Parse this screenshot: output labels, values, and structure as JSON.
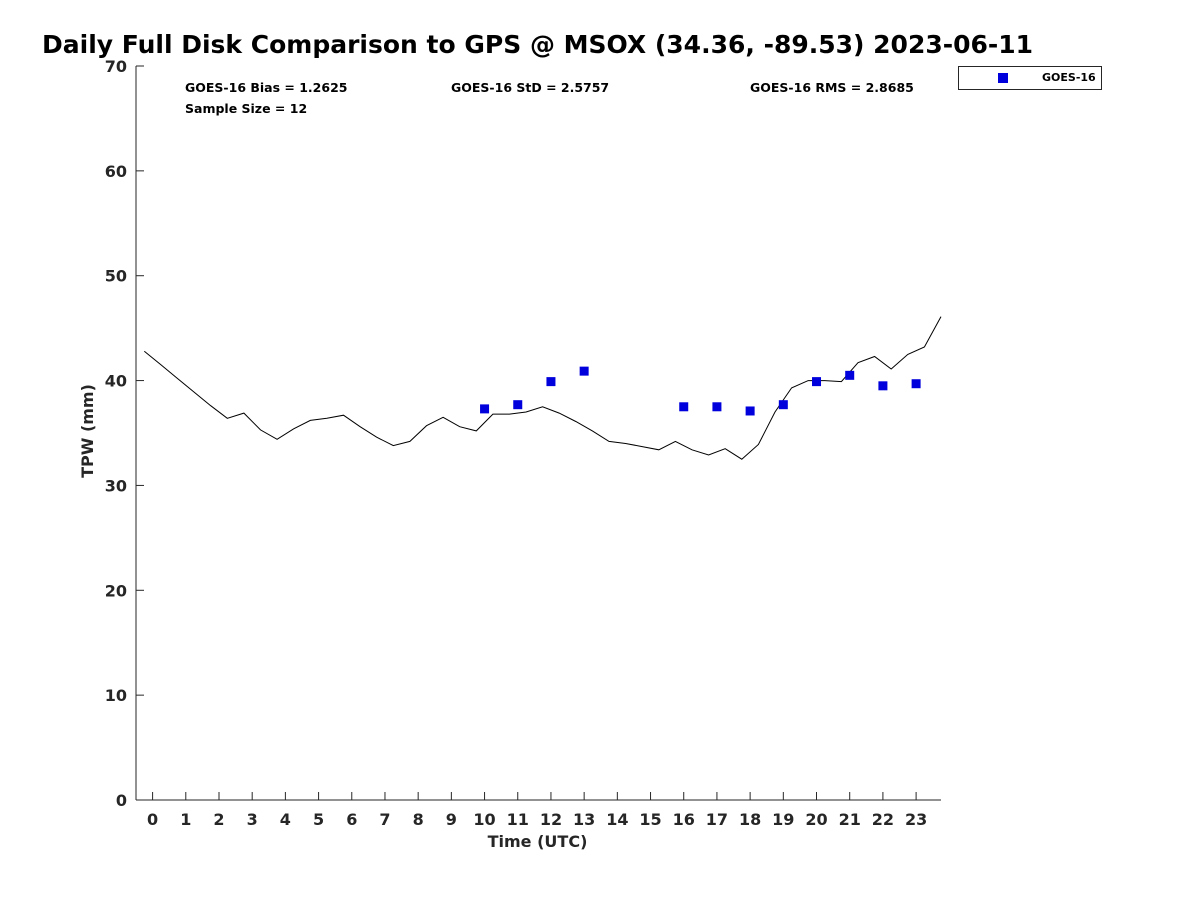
{
  "title": "Daily Full Disk Comparison to GPS @ MSOX (34.36, -89.53) 2023-06-11",
  "stats": {
    "bias": "GOES-16 Bias = 1.2625",
    "std": "GOES-16 StD = 2.5757",
    "rms": "GOES-16 RMS = 2.8685",
    "sample": "Sample Size = 12"
  },
  "colors": {
    "goes": "#0000dd",
    "gps_line": "#000000",
    "axis": "#262626"
  },
  "chart_data": {
    "type": "scatter",
    "title": "Daily Full Disk Comparison to GPS @ MSOX (34.36, -89.53) 2023-06-11",
    "xlabel": "Time (UTC)",
    "ylabel": "TPW (mm)",
    "xlim": [
      -0.5,
      23.75
    ],
    "ylim": [
      0,
      70
    ],
    "xticks": [
      0,
      1,
      2,
      3,
      4,
      5,
      6,
      7,
      8,
      9,
      10,
      11,
      12,
      13,
      14,
      15,
      16,
      17,
      18,
      19,
      20,
      21,
      22,
      23
    ],
    "yticks": [
      0,
      10,
      20,
      30,
      40,
      50,
      60,
      70
    ],
    "grid": false,
    "legend": {
      "placement": "top-right outside",
      "entries": [
        "GOES-16"
      ]
    },
    "series": [
      {
        "name": "GOES-16",
        "marker": "square",
        "x": [
          10,
          11,
          12,
          13,
          16,
          17,
          18,
          19,
          20,
          21,
          22,
          23
        ],
        "y": [
          37.3,
          37.7,
          39.9,
          40.9,
          37.5,
          37.5,
          37.1,
          37.7,
          39.9,
          40.5,
          39.5,
          39.7
        ]
      },
      {
        "marker": "line",
        "x": [
          -0.25,
          0.25,
          0.75,
          1.25,
          1.75,
          2.25,
          2.75,
          3.25,
          3.75,
          4.25,
          4.75,
          5.25,
          5.75,
          6.25,
          6.75,
          7.25,
          7.75,
          8.25,
          8.75,
          9.25,
          9.75,
          10.25,
          10.75,
          11.25,
          11.75,
          12.25,
          12.75,
          13.25,
          13.75,
          14.25,
          14.75,
          15.25,
          15.75,
          16.25,
          16.75,
          17.25,
          17.75,
          18.25,
          18.75,
          19.25,
          19.75,
          20.25,
          20.75,
          21.25,
          21.75,
          22.25,
          22.75,
          23.25,
          23.75
        ],
        "y": [
          42.8,
          41.5,
          40.2,
          38.9,
          37.6,
          36.4,
          36.9,
          35.3,
          34.4,
          35.4,
          36.2,
          36.4,
          36.7,
          35.6,
          34.6,
          33.8,
          34.2,
          35.7,
          36.5,
          35.6,
          35.2,
          36.8,
          36.8,
          37.0,
          37.5,
          36.9,
          36.1,
          35.2,
          34.2,
          34.0,
          33.7,
          33.4,
          34.2,
          33.4,
          32.9,
          33.5,
          32.5,
          33.9,
          37.0,
          39.3,
          40.0,
          40.0,
          39.9,
          41.7,
          42.3,
          41.1,
          42.5,
          43.2,
          46.1
        ]
      }
    ]
  }
}
